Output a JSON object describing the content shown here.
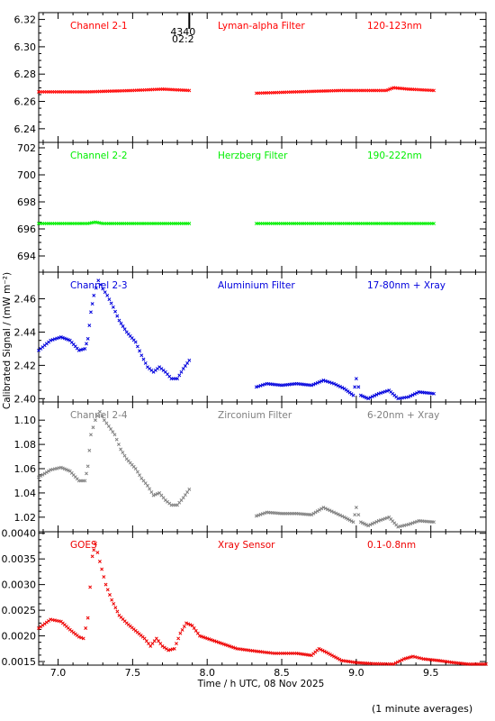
{
  "chart_data": {
    "type": "scatter",
    "xlabel": "Time / h UTC, 08 Nov 2025",
    "ylabel": "Calibrated Signal / (mW m⁻²)",
    "xlim": [
      6.87,
      9.87
    ],
    "x_ticks": [
      "7.0",
      "7.5",
      "8.0",
      "8.5",
      "9.0",
      "9.5"
    ],
    "x_tick_values": [
      7.0,
      7.5,
      8.0,
      8.5,
      9.0,
      9.5
    ],
    "marker_label": {
      "x": 7.88,
      "line1": "4340",
      "line2": "02:2"
    },
    "footnote": "(1 minute averages)",
    "panels": [
      {
        "name": "Channel 2-1",
        "filter": "Lyman-alpha Filter",
        "band": "120-123nm",
        "color": "#ff0000",
        "ylim": [
          6.23,
          6.325
        ],
        "y_ticks": [
          "6.24",
          "6.26",
          "6.28",
          "6.30",
          "6.32"
        ],
        "y_tick_values": [
          6.24,
          6.26,
          6.28,
          6.3,
          6.32
        ],
        "segments": [
          {
            "points": [
              [
                6.87,
                6.267
              ],
              [
                7.2,
                6.267
              ],
              [
                7.5,
                6.268
              ],
              [
                7.7,
                6.269
              ],
              [
                7.88,
                6.268
              ]
            ]
          },
          {
            "points": [
              [
                8.33,
                6.266
              ],
              [
                8.6,
                6.267
              ],
              [
                8.9,
                6.268
              ],
              [
                9.2,
                6.268
              ],
              [
                9.25,
                6.27
              ],
              [
                9.35,
                6.269
              ],
              [
                9.52,
                6.268
              ]
            ]
          }
        ]
      },
      {
        "name": "Channel 2-2",
        "filter": "Herzberg Filter",
        "band": "190-222nm",
        "color": "#00ee00",
        "ylim": [
          692.8,
          702.4
        ],
        "y_ticks": [
          "694",
          "696",
          "698",
          "700",
          "702"
        ],
        "y_tick_values": [
          694,
          696,
          698,
          700,
          702
        ],
        "segments": [
          {
            "points": [
              [
                6.87,
                696.4
              ],
              [
                7.2,
                696.4
              ],
              [
                7.25,
                696.5
              ],
              [
                7.3,
                696.4
              ],
              [
                7.88,
                696.4
              ]
            ]
          },
          {
            "points": [
              [
                8.33,
                696.4
              ],
              [
                9.0,
                696.4
              ],
              [
                9.52,
                696.4
              ]
            ]
          }
        ]
      },
      {
        "name": "Channel 2-3",
        "filter": "Aluminium Filter",
        "band": "17-80nm + Xray",
        "color": "#0000dd",
        "ylim": [
          2.398,
          2.476
        ],
        "y_ticks": [
          "2.40",
          "2.42",
          "2.44",
          "2.46"
        ],
        "y_tick_values": [
          2.4,
          2.42,
          2.44,
          2.46
        ],
        "segments": [
          {
            "points": [
              [
                6.87,
                2.429
              ],
              [
                6.95,
                2.435
              ],
              [
                7.02,
                2.437
              ],
              [
                7.08,
                2.435
              ],
              [
                7.14,
                2.429
              ],
              [
                7.18,
                2.43
              ],
              [
                7.2,
                2.436
              ],
              [
                7.22,
                2.452
              ],
              [
                7.24,
                2.462
              ],
              [
                7.27,
                2.471
              ],
              [
                7.3,
                2.466
              ],
              [
                7.33,
                2.462
              ],
              [
                7.37,
                2.455
              ],
              [
                7.41,
                2.447
              ],
              [
                7.46,
                2.44
              ],
              [
                7.52,
                2.434
              ],
              [
                7.56,
                2.426
              ],
              [
                7.6,
                2.419
              ],
              [
                7.64,
                2.416
              ],
              [
                7.68,
                2.419
              ],
              [
                7.72,
                2.416
              ],
              [
                7.76,
                2.412
              ],
              [
                7.8,
                2.412
              ],
              [
                7.84,
                2.418
              ],
              [
                7.88,
                2.423
              ]
            ]
          },
          {
            "points": [
              [
                8.33,
                2.407
              ],
              [
                8.4,
                2.409
              ],
              [
                8.5,
                2.408
              ],
              [
                8.6,
                2.409
              ],
              [
                8.7,
                2.408
              ],
              [
                8.78,
                2.411
              ],
              [
                8.85,
                2.409
              ],
              [
                8.92,
                2.406
              ],
              [
                8.98,
                2.402
              ],
              [
                9.0,
                2.412
              ],
              [
                9.03,
                2.402
              ],
              [
                9.08,
                2.4
              ],
              [
                9.15,
                2.403
              ],
              [
                9.22,
                2.405
              ],
              [
                9.28,
                2.4
              ],
              [
                9.35,
                2.401
              ],
              [
                9.42,
                2.404
              ],
              [
                9.52,
                2.403
              ]
            ]
          }
        ]
      },
      {
        "name": "Channel 2-4",
        "filter": "Zirconium Filter",
        "band": "6-20nm + Xray",
        "color": "#808080",
        "ylim": [
          1.008,
          1.115
        ],
        "y_ticks": [
          "1.02",
          "1.04",
          "1.06",
          "1.08",
          "1.10"
        ],
        "y_tick_values": [
          1.02,
          1.04,
          1.06,
          1.08,
          1.1
        ],
        "segments": [
          {
            "points": [
              [
                6.87,
                1.053
              ],
              [
                6.95,
                1.059
              ],
              [
                7.02,
                1.061
              ],
              [
                7.08,
                1.058
              ],
              [
                7.14,
                1.05
              ],
              [
                7.18,
                1.05
              ],
              [
                7.2,
                1.062
              ],
              [
                7.22,
                1.088
              ],
              [
                7.25,
                1.1
              ],
              [
                7.28,
                1.107
              ],
              [
                7.31,
                1.1
              ],
              [
                7.34,
                1.095
              ],
              [
                7.38,
                1.088
              ],
              [
                7.42,
                1.076
              ],
              [
                7.46,
                1.068
              ],
              [
                7.52,
                1.06
              ],
              [
                7.56,
                1.052
              ],
              [
                7.6,
                1.046
              ],
              [
                7.64,
                1.038
              ],
              [
                7.68,
                1.04
              ],
              [
                7.72,
                1.034
              ],
              [
                7.76,
                1.03
              ],
              [
                7.8,
                1.03
              ],
              [
                7.84,
                1.036
              ],
              [
                7.88,
                1.043
              ]
            ]
          },
          {
            "points": [
              [
                8.33,
                1.021
              ],
              [
                8.4,
                1.024
              ],
              [
                8.5,
                1.023
              ],
              [
                8.6,
                1.023
              ],
              [
                8.7,
                1.022
              ],
              [
                8.78,
                1.028
              ],
              [
                8.85,
                1.024
              ],
              [
                8.92,
                1.02
              ],
              [
                8.98,
                1.016
              ],
              [
                9.0,
                1.028
              ],
              [
                9.03,
                1.016
              ],
              [
                9.08,
                1.013
              ],
              [
                9.15,
                1.017
              ],
              [
                9.22,
                1.02
              ],
              [
                9.28,
                1.012
              ],
              [
                9.35,
                1.014
              ],
              [
                9.42,
                1.017
              ],
              [
                9.52,
                1.016
              ]
            ]
          }
        ]
      },
      {
        "name": "GOES",
        "filter": "Xray Sensor",
        "band": "0.1-0.8nm",
        "color": "#ee0000",
        "ylim": [
          0.00143,
          0.00403
        ],
        "y_ticks": [
          "0.0015",
          "0.0020",
          "0.0025",
          "0.0030",
          "0.0035",
          "0.0040"
        ],
        "y_tick_values": [
          0.0015,
          0.002,
          0.0025,
          0.003,
          0.0035,
          0.004
        ],
        "segments": [
          {
            "points": [
              [
                6.87,
                0.00215
              ],
              [
                6.95,
                0.00232
              ],
              [
                7.02,
                0.00228
              ],
              [
                7.08,
                0.00212
              ],
              [
                7.14,
                0.00198
              ],
              [
                7.17,
                0.00195
              ],
              [
                7.2,
                0.00235
              ],
              [
                7.23,
                0.00355
              ],
              [
                7.25,
                0.0038
              ],
              [
                7.28,
                0.00345
              ],
              [
                7.32,
                0.003
              ],
              [
                7.36,
                0.0027
              ],
              [
                7.41,
                0.0024
              ],
              [
                7.46,
                0.00225
              ],
              [
                7.52,
                0.0021
              ],
              [
                7.58,
                0.00195
              ],
              [
                7.62,
                0.0018
              ],
              [
                7.66,
                0.00195
              ],
              [
                7.7,
                0.0018
              ],
              [
                7.74,
                0.00172
              ],
              [
                7.78,
                0.00175
              ],
              [
                7.82,
                0.00205
              ],
              [
                7.86,
                0.00225
              ],
              [
                7.9,
                0.0022
              ],
              [
                7.95,
                0.002
              ],
              [
                8.0,
                0.00195
              ],
              [
                8.1,
                0.00185
              ],
              [
                8.2,
                0.00175
              ],
              [
                8.33,
                0.0017
              ],
              [
                8.45,
                0.00166
              ],
              [
                8.6,
                0.00166
              ],
              [
                8.7,
                0.00162
              ],
              [
                8.75,
                0.00175
              ],
              [
                8.8,
                0.00168
              ],
              [
                8.9,
                0.00152
              ],
              [
                9.0,
                0.00148
              ],
              [
                9.1,
                0.00146
              ],
              [
                9.25,
                0.00145
              ],
              [
                9.32,
                0.00155
              ],
              [
                9.38,
                0.0016
              ],
              [
                9.45,
                0.00155
              ],
              [
                9.55,
                0.00152
              ],
              [
                9.65,
                0.00148
              ],
              [
                9.75,
                0.00145
              ],
              [
                9.87,
                0.00145
              ]
            ]
          }
        ]
      }
    ]
  }
}
